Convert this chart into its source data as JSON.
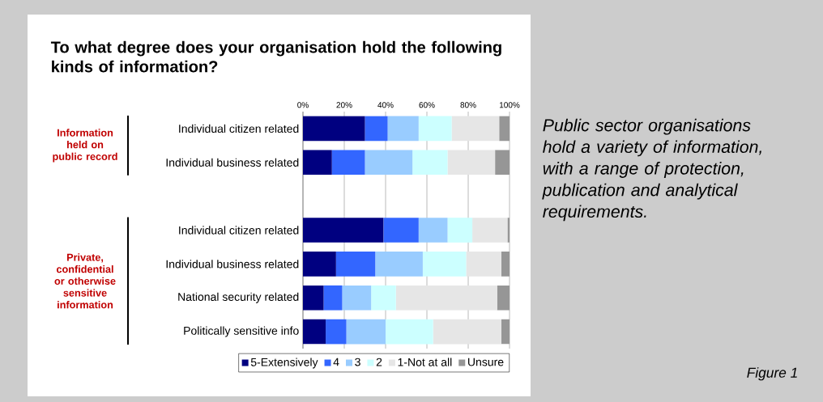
{
  "chart_data": {
    "type": "bar",
    "orientation": "horizontal",
    "stacked": true,
    "title": "To what degree does your organisation hold the following kinds of information?",
    "categories": [
      "Individual citizen related",
      "Individual business related",
      null,
      "Individual citizen related",
      "Individual business related",
      "National security related",
      "Politically sensitive info"
    ],
    "series": [
      {
        "name": "5-Extensively",
        "color": "#000080",
        "values": [
          30,
          14,
          null,
          39,
          16,
          10,
          11
        ]
      },
      {
        "name": "4",
        "color": "#3366ff",
        "values": [
          11,
          16,
          null,
          17,
          19,
          9,
          10
        ]
      },
      {
        "name": "3",
        "color": "#99ccff",
        "values": [
          15,
          23,
          null,
          14,
          23,
          14,
          19
        ]
      },
      {
        "name": "2",
        "color": "#ccffff",
        "values": [
          16,
          17,
          null,
          12,
          21,
          12,
          23
        ]
      },
      {
        "name": "1-Not at all",
        "color": "#e6e6e6",
        "values": [
          23,
          23,
          null,
          17,
          17,
          49,
          33
        ]
      },
      {
        "name": "Unsure",
        "color": "#969696",
        "values": [
          5,
          7,
          null,
          1,
          4,
          6,
          4
        ]
      }
    ],
    "xlim": [
      0,
      100
    ],
    "xticks": [
      {
        "value": 0,
        "label": "0%"
      },
      {
        "value": 20,
        "label": "20%"
      },
      {
        "value": 40,
        "label": "40%"
      },
      {
        "value": 60,
        "label": "60%"
      },
      {
        "value": 80,
        "label": "80%"
      },
      {
        "value": 100,
        "label": "100%"
      }
    ],
    "grid": "x",
    "legend": "bottom",
    "annotations": [
      "Information held on public record",
      "Private, confidential or otherwise sensitive information",
      "Public sector organisations hold a variety of information, with a range of protection, publication and analytical requirements.",
      "Figure 1"
    ]
  }
}
